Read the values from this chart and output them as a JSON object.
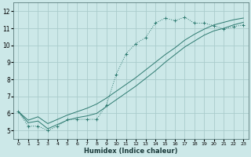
{
  "xlabel": "Humidex (Indice chaleur)",
  "bg_color": "#cce8e8",
  "grid_color": "#aacccc",
  "line_color": "#2d7a70",
  "xlim": [
    -0.5,
    23.5
  ],
  "ylim": [
    4.5,
    12.5
  ],
  "xticks": [
    0,
    1,
    2,
    3,
    4,
    5,
    6,
    7,
    8,
    9,
    10,
    11,
    12,
    13,
    14,
    15,
    16,
    17,
    18,
    19,
    20,
    21,
    22,
    23
  ],
  "yticks": [
    5,
    6,
    7,
    8,
    9,
    10,
    11,
    12
  ],
  "curve1_x": [
    0,
    1,
    2,
    3,
    4,
    5,
    6,
    7,
    8,
    9,
    10,
    11,
    12,
    13,
    14,
    15,
    16,
    17,
    18,
    19,
    20,
    21,
    22,
    23
  ],
  "curve1_y": [
    6.1,
    5.25,
    5.25,
    5.0,
    5.25,
    5.65,
    5.65,
    5.65,
    5.65,
    6.5,
    8.3,
    9.5,
    10.1,
    10.45,
    11.3,
    11.6,
    11.45,
    11.65,
    11.3,
    11.3,
    11.15,
    10.95,
    11.1,
    11.2
  ],
  "curve2_x": [
    0,
    1,
    2,
    3,
    4,
    5,
    6,
    7,
    8,
    9,
    10,
    11,
    12,
    13,
    14,
    15,
    16,
    17,
    18,
    19,
    20,
    21,
    22,
    23
  ],
  "curve2_y": [
    6.1,
    5.6,
    5.8,
    5.4,
    5.65,
    5.9,
    6.1,
    6.3,
    6.55,
    6.9,
    7.3,
    7.7,
    8.1,
    8.55,
    9.0,
    9.45,
    9.85,
    10.3,
    10.65,
    10.95,
    11.2,
    11.35,
    11.5,
    11.6
  ],
  "curve3_x": [
    0,
    1,
    2,
    3,
    4,
    5,
    6,
    7,
    8,
    9,
    10,
    11,
    12,
    13,
    14,
    15,
    16,
    17,
    18,
    19,
    20,
    21,
    22,
    23
  ],
  "curve3_y": [
    6.1,
    5.45,
    5.55,
    5.1,
    5.35,
    5.6,
    5.75,
    5.85,
    6.0,
    6.4,
    6.8,
    7.2,
    7.6,
    8.05,
    8.5,
    9.0,
    9.45,
    9.9,
    10.25,
    10.6,
    10.85,
    11.0,
    11.2,
    11.35
  ]
}
